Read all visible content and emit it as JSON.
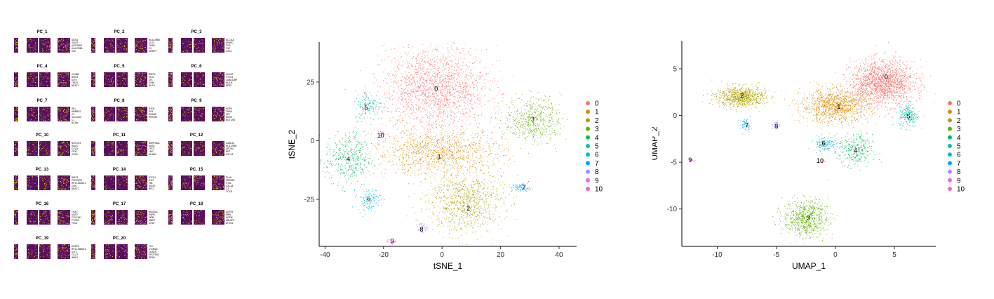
{
  "colors": {
    "clusters": [
      "#F8766D",
      "#DB8E00",
      "#AEA200",
      "#64B200",
      "#00BD5C",
      "#00C1A7",
      "#00BADE",
      "#00A6FF",
      "#B385FF",
      "#EF67EB",
      "#FF63B6"
    ],
    "heat_low": "#5a0f5e",
    "heat_high": "#f5e600"
  },
  "heatmaps": [
    {
      "title": "PC_1",
      "genes": [
        "AIOS2",
        "VSIG3",
        "ALDOBAP",
        "HLA-DRB1",
        "VIM"
      ]
    },
    {
      "title": "PC_2",
      "genes": [
        "HLA-DRB5",
        "CD74",
        "CNN3",
        "C3",
        "IGFBP7"
      ]
    },
    {
      "title": "PC_3",
      "genes": [
        "SLC11A",
        "SPARC",
        "FOS",
        "C1Z",
        "COL3"
      ]
    },
    {
      "title": "PC_4",
      "genes": [
        "CCNB2",
        "BIRC5",
        "KLF4",
        "TMCS",
        "NEAT1"
      ]
    },
    {
      "title": "PC_5",
      "genes": [
        "BIRC5",
        "PLK1",
        "ZF1",
        "CRIM",
        "HLA-E"
      ]
    },
    {
      "title": "PC_6",
      "genes": [
        "HOLAF",
        "PTTG1",
        "LGALS3BP",
        "HLA-B",
        "RPS2"
      ]
    },
    {
      "title": "PC_7",
      "genes": [
        "IRL1",
        "AMBRS2",
        "C1",
        "SLC34A2",
        "C1",
        "NCAM"
      ]
    },
    {
      "title": "PC_8",
      "genes": [
        "IFITM",
        "GF4",
        "CRABZ",
        "PRSS23"
      ]
    },
    {
      "title": "PC_9",
      "genes": [
        "HOPX",
        "TMSA",
        "SPL",
        "ERGE",
        "NOTCH3"
      ]
    },
    {
      "title": "PC_10",
      "genes": [
        "NOTCH3",
        "RAM1",
        "COL3I",
        "CPXL",
        "CCN2"
      ]
    },
    {
      "title": "PC_11",
      "genes": [
        "SERPINA1",
        "NASC",
        "TFF3",
        "LRG",
        "NCAM1"
      ]
    },
    {
      "title": "PC_12",
      "genes": [
        "LGALS2",
        "HLA-DRB1",
        "APOE4",
        "KRT",
        "CXCL3"
      ]
    },
    {
      "title": "PC_13",
      "genes": [
        "BIRC5",
        "PFDTSRC",
        "RP11-4B225.4",
        "CNN",
        "NEAT1"
      ]
    },
    {
      "title": "PC_14",
      "genes": [
        "IFITM1",
        "IFI27",
        "TBL",
        "ISG20",
        "IRF1"
      ]
    },
    {
      "title": "PC_15",
      "genes": [
        "PLAU",
        "PRSS23",
        "CTSL",
        "CXCL8",
        "C3",
        "COL3I"
      ]
    },
    {
      "title": "PC_16",
      "genes": [
        "TNXC",
        "AQP3",
        "COL1TA1",
        "PTGS2",
        "TCN1"
      ]
    },
    {
      "title": "PC_17",
      "genes": [
        "MUC5AC",
        "HSPB",
        "ORM",
        "MMP7",
        "COL5"
      ]
    },
    {
      "title": "PC_18",
      "genes": [
        "AQP43",
        "MKI6",
        "AGPM",
        "NBL6P3",
        "ATCN1"
      ]
    },
    {
      "title": "PC_19",
      "genes": [
        "DUSP6",
        "RP11-358N4.6",
        "KLF2",
        "CCLIT",
        "WNK1"
      ]
    },
    {
      "title": "PC_20",
      "genes": [
        "TX1",
        "CTNNA1",
        "CEADR",
        "PFDTSRC",
        "RRN3"
      ]
    }
  ],
  "chart_data": [
    {
      "type": "scatter",
      "xlabel": "tSNE_1",
      "ylabel": "tSNE_2",
      "xlim": [
        -42,
        46
      ],
      "ylim": [
        -45,
        42
      ],
      "xticks": [
        -40,
        -20,
        0,
        20,
        40
      ],
      "yticks": [
        -25,
        0,
        25
      ],
      "legend_position": "right",
      "series": [
        {
          "name": "0",
          "cx": -2,
          "cy": 22,
          "sx": 11,
          "sy": 11,
          "n": 1800,
          "label_at": [
            -2,
            22
          ]
        },
        {
          "name": "1",
          "cx": -1,
          "cy": -5,
          "sx": 14,
          "sy": 6,
          "n": 1100,
          "label_at": [
            -1,
            -7
          ]
        },
        {
          "name": "2",
          "cx": 8,
          "cy": -26,
          "sx": 8,
          "sy": 8,
          "n": 900,
          "label_at": [
            9,
            -29
          ]
        },
        {
          "name": "3",
          "cx": 31,
          "cy": 9,
          "sx": 6,
          "sy": 6,
          "n": 500,
          "label_at": [
            31,
            9
          ]
        },
        {
          "name": "4",
          "cx": -32,
          "cy": -8,
          "sx": 5,
          "sy": 7,
          "n": 400,
          "label_at": [
            -32,
            -8
          ]
        },
        {
          "name": "5",
          "cx": -25,
          "cy": 15,
          "sx": 3,
          "sy": 4,
          "n": 160,
          "label_at": [
            -26,
            14
          ]
        },
        {
          "name": "6",
          "cx": -25,
          "cy": -25,
          "sx": 2.5,
          "sy": 3,
          "n": 120,
          "label_at": [
            -25,
            -25
          ]
        },
        {
          "name": "7",
          "cx": 27,
          "cy": -20,
          "sx": 2,
          "sy": 1.2,
          "n": 80,
          "label_at": [
            28,
            -20
          ]
        },
        {
          "name": "8",
          "cx": -7,
          "cy": -37,
          "sx": 1.2,
          "sy": 1.2,
          "n": 40,
          "label_at": [
            -7,
            -38
          ]
        },
        {
          "name": "9",
          "cx": -17,
          "cy": -43,
          "sx": 1.2,
          "sy": 0.6,
          "n": 25,
          "label_at": [
            -17,
            -43
          ]
        },
        {
          "name": "10",
          "cx": -21,
          "cy": 3,
          "sx": 1,
          "sy": 1,
          "n": 20,
          "label_at": [
            -21,
            2
          ]
        }
      ]
    },
    {
      "type": "scatter",
      "xlabel": "UMAP_1",
      "ylabel": "UMAP_2",
      "xlim": [
        -13,
        8.5
      ],
      "ylim": [
        -14,
        8
      ],
      "xticks": [
        -10,
        -5,
        0,
        5
      ],
      "yticks": [
        -10,
        -5,
        0,
        5
      ],
      "legend_position": "right",
      "series": [
        {
          "name": "0",
          "cx": 4,
          "cy": 3.5,
          "sx": 1.7,
          "sy": 1.5,
          "n": 1800,
          "label_at": [
            4.3,
            4.1
          ]
        },
        {
          "name": "1",
          "cx": 0,
          "cy": 1,
          "sx": 1.8,
          "sy": 1.1,
          "n": 1100,
          "label_at": [
            0.3,
            0.9
          ]
        },
        {
          "name": "2",
          "cx": -8,
          "cy": 2,
          "sx": 1.3,
          "sy": 0.7,
          "n": 800,
          "label_at": [
            -7.9,
            2.1
          ]
        },
        {
          "name": "3",
          "cx": -2.5,
          "cy": -11,
          "sx": 1.2,
          "sy": 1.2,
          "n": 700,
          "label_at": [
            -2.3,
            -11
          ]
        },
        {
          "name": "4",
          "cx": 1.7,
          "cy": -3.8,
          "sx": 0.9,
          "sy": 1.1,
          "n": 300,
          "label_at": [
            1.7,
            -3.8
          ]
        },
        {
          "name": "5",
          "cx": 6.2,
          "cy": 0,
          "sx": 0.5,
          "sy": 0.8,
          "n": 200,
          "label_at": [
            6.2,
            -0.1
          ]
        },
        {
          "name": "6",
          "cx": -0.9,
          "cy": -3,
          "sx": 0.6,
          "sy": 0.5,
          "n": 150,
          "label_at": [
            -1,
            -3
          ]
        },
        {
          "name": "7",
          "cx": -7.6,
          "cy": -1,
          "sx": 0.3,
          "sy": 0.4,
          "n": 60,
          "label_at": [
            -7.5,
            -1.1
          ]
        },
        {
          "name": "8",
          "cx": -5,
          "cy": -1,
          "sx": 0.2,
          "sy": 0.3,
          "n": 30,
          "label_at": [
            -5,
            -1.2
          ]
        },
        {
          "name": "9",
          "cx": -12.2,
          "cy": -4.8,
          "sx": 0.15,
          "sy": 0.1,
          "n": 15,
          "label_at": [
            -12.3,
            -4.8
          ]
        },
        {
          "name": "10",
          "cx": -1.1,
          "cy": -4.9,
          "sx": 0.15,
          "sy": 0.15,
          "n": 15,
          "label_at": [
            -1.3,
            -4.9
          ]
        }
      ]
    }
  ]
}
